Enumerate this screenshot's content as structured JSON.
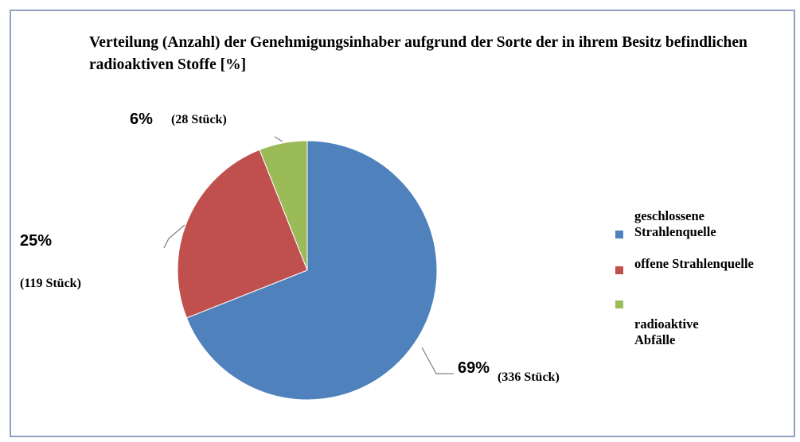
{
  "chart_data": {
    "type": "pie",
    "title": "Verteilung (Anzahl) der Genehmigungsinhaber aufgrund der Sorte der in ihrem Besitz befindlichen radioaktiven Stoffe [%]",
    "categories": [
      "geschlossene Strahlenquelle",
      "offene Strahlenquelle",
      "radioaktive Abfälle"
    ],
    "values": [
      69,
      25,
      6
    ],
    "value_labels": [
      "69%",
      "25%",
      "6%"
    ],
    "annotations": [
      "(336 Stück)",
      "(119 Stück)",
      "(28 Stück)"
    ],
    "colors": [
      "#4f81bd",
      "#c0504d",
      "#9bbb59"
    ],
    "legend": "right"
  }
}
